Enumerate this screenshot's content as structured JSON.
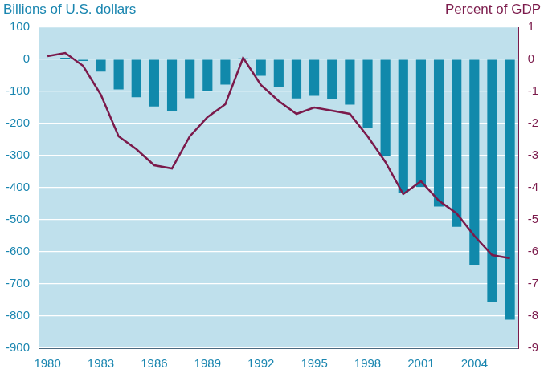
{
  "chart_data": {
    "type": "bar",
    "ylabel": "Billions of U.S. dollars",
    "y2label": "Percent of GDP",
    "categories": [
      "1980",
      null,
      null,
      "1983",
      null,
      null,
      "1986",
      null,
      null,
      "1989",
      null,
      null,
      "1992",
      null,
      null,
      "1995",
      null,
      null,
      "1998",
      null,
      null,
      "2001",
      null,
      null,
      "2004",
      null,
      null
    ],
    "series": [
      {
        "type": "bar",
        "color": "#1189ab",
        "values": [
          2,
          5,
          -5,
          -38,
          -94,
          -118,
          -147,
          -161,
          -121,
          -99,
          -79,
          3,
          -51,
          -85,
          -122,
          -114,
          -125,
          -141,
          -215,
          -301,
          -417,
          -398,
          -459,
          -522,
          -640,
          -755,
          -811
        ]
      },
      {
        "type": "line",
        "color": "#7b1a4b",
        "axis": "y2",
        "values": [
          0.1,
          0.2,
          -0.2,
          -1.1,
          -2.4,
          -2.8,
          -3.3,
          -3.4,
          -2.4,
          -1.8,
          -1.4,
          0.05,
          -0.8,
          -1.3,
          -1.7,
          -1.5,
          -1.6,
          -1.7,
          -2.4,
          -3.2,
          -4.2,
          -3.8,
          -4.4,
          -4.8,
          -5.5,
          -6.1,
          -6.2
        ]
      }
    ],
    "ylim": [
      -900,
      100
    ],
    "yticks": [
      -900,
      -800,
      -700,
      -600,
      -500,
      -400,
      -300,
      -200,
      -100,
      0,
      100
    ],
    "y2lim": [
      -9,
      1
    ],
    "y2ticks": [
      -9,
      -8,
      -7,
      -6,
      -5,
      -4,
      -3,
      -2,
      -1,
      0,
      1
    ],
    "grid": true
  }
}
